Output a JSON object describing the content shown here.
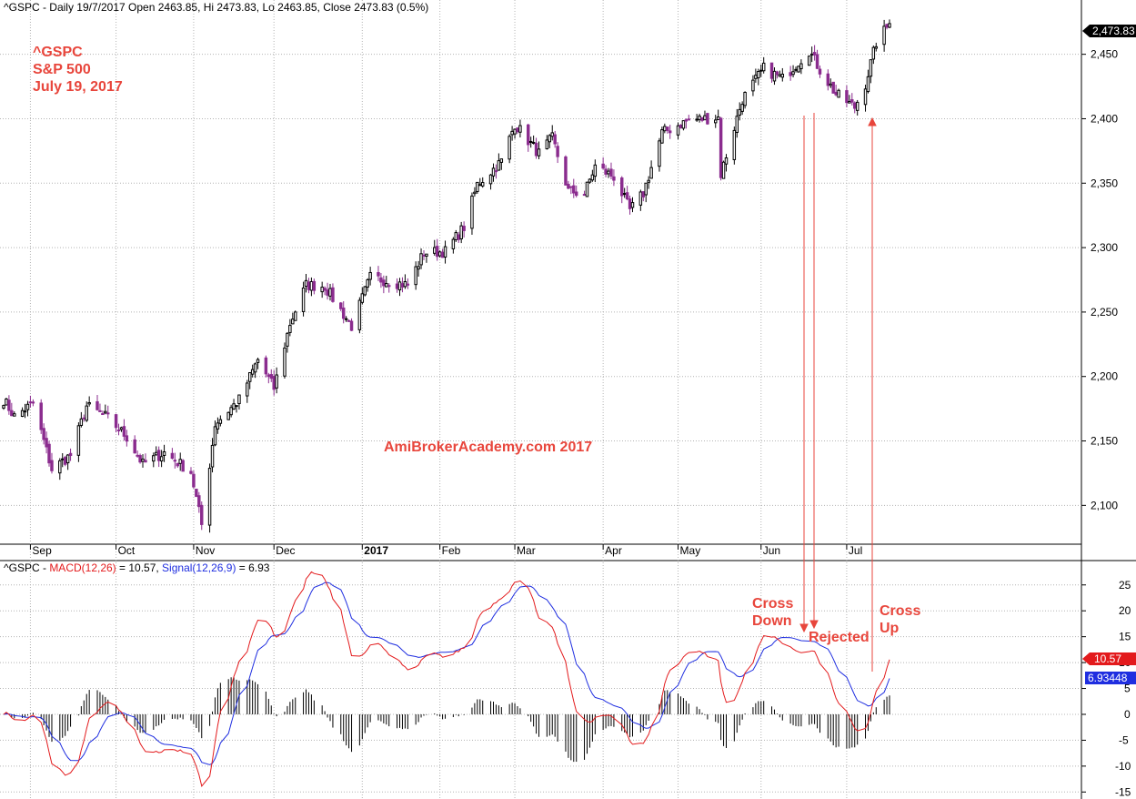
{
  "header": {
    "price_title": "^GSPC - Daily 19/7/2017 Open 2463.85, Hi 2473.83, Lo 2463.85, Close 2473.83 (0.5%)",
    "macd_prefix": "^GSPC - ",
    "macd_label": "MACD(12,26)",
    "macd_value": " = 10.57, ",
    "signal_label": "Signal(12,26,9)",
    "signal_value": " = 6.93"
  },
  "annotations": {
    "symbol": "^GSPC",
    "index_name": "S&P 500",
    "date": "July 19, 2017",
    "watermark": "AmiBrokerAcademy.com 2017",
    "cross_down_1": "Cross",
    "cross_down_2": "Down",
    "rejected": "Rejected",
    "cross_up_1": "Cross",
    "cross_up_2": "Up"
  },
  "badges": {
    "last_close": "2,473.83",
    "macd_last": "10.57",
    "signal_last": "6.93448"
  },
  "colors": {
    "bull": "#000000",
    "bear": "#8b2c8f",
    "macd": "#e31a1c",
    "signal": "#1f2ee0",
    "annotation": "#e8463c",
    "badge_close": "#000000",
    "badge_macd": "#e31a1c",
    "badge_signal": "#1f2ee0"
  },
  "chart_data": [
    {
      "type": "candlestick",
      "x_axis": "date",
      "x_start": "2016-08-22",
      "x_end": "2017-07-19",
      "month_labels": [
        {
          "label": "Sep",
          "date": "2016-09-01"
        },
        {
          "label": "Oct",
          "date": "2016-10-03"
        },
        {
          "label": "Nov",
          "date": "2016-11-01"
        },
        {
          "label": "Dec",
          "date": "2016-12-01"
        },
        {
          "label": "2017",
          "date": "2017-01-03"
        },
        {
          "label": "Feb",
          "date": "2017-02-01"
        },
        {
          "label": "Mar",
          "date": "2017-03-01"
        },
        {
          "label": "Apr",
          "date": "2017-04-03"
        },
        {
          "label": "May",
          "date": "2017-05-01"
        },
        {
          "label": "Jun",
          "date": "2017-06-01"
        },
        {
          "label": "Jul",
          "date": "2017-07-03"
        }
      ],
      "ylim": [
        2072,
        2478
      ],
      "yticks": [
        {
          "v": 2100,
          "label": "2,100"
        },
        {
          "v": 2150,
          "label": "2,150"
        },
        {
          "v": 2200,
          "label": "2,200"
        },
        {
          "v": 2250,
          "label": "2,250"
        },
        {
          "v": 2300,
          "label": "2,300"
        },
        {
          "v": 2350,
          "label": "2,350"
        },
        {
          "v": 2400,
          "label": "2,400"
        },
        {
          "v": 2450,
          "label": "2,450"
        }
      ],
      "close_anchors": [
        [
          "2016-08-22",
          2182
        ],
        [
          "2016-08-26",
          2169
        ],
        [
          "2016-09-02",
          2179
        ],
        [
          "2016-09-09",
          2128
        ],
        [
          "2016-09-16",
          2139
        ],
        [
          "2016-09-22",
          2177
        ],
        [
          "2016-09-30",
          2168
        ],
        [
          "2016-10-07",
          2153
        ],
        [
          "2016-10-13",
          2132
        ],
        [
          "2016-10-21",
          2141
        ],
        [
          "2016-10-31",
          2126
        ],
        [
          "2016-11-04",
          2085
        ],
        [
          "2016-11-09",
          2163
        ],
        [
          "2016-11-18",
          2182
        ],
        [
          "2016-11-25",
          2213
        ],
        [
          "2016-12-01",
          2191
        ],
        [
          "2016-12-07",
          2241
        ],
        [
          "2016-12-13",
          2271
        ],
        [
          "2016-12-20",
          2270
        ],
        [
          "2016-12-30",
          2239
        ],
        [
          "2017-01-06",
          2277
        ],
        [
          "2017-01-13",
          2274
        ],
        [
          "2017-01-20",
          2271
        ],
        [
          "2017-01-26",
          2296
        ],
        [
          "2017-02-03",
          2297
        ],
        [
          "2017-02-10",
          2316
        ],
        [
          "2017-02-15",
          2349
        ],
        [
          "2017-02-24",
          2367
        ],
        [
          "2017-03-01",
          2396
        ],
        [
          "2017-03-10",
          2373
        ],
        [
          "2017-03-15",
          2385
        ],
        [
          "2017-03-21",
          2344
        ],
        [
          "2017-03-27",
          2342
        ],
        [
          "2017-03-31",
          2363
        ],
        [
          "2017-04-07",
          2355
        ],
        [
          "2017-04-13",
          2329
        ],
        [
          "2017-04-18",
          2342
        ],
        [
          "2017-04-25",
          2389
        ],
        [
          "2017-05-05",
          2399
        ],
        [
          "2017-05-16",
          2401
        ],
        [
          "2017-05-17",
          2357
        ],
        [
          "2017-05-25",
          2415
        ],
        [
          "2017-06-02",
          2439
        ],
        [
          "2017-06-09",
          2431
        ],
        [
          "2017-06-19",
          2453
        ],
        [
          "2017-06-23",
          2438
        ],
        [
          "2017-06-29",
          2419
        ],
        [
          "2017-07-06",
          2409
        ],
        [
          "2017-07-10",
          2427
        ],
        [
          "2017-07-14",
          2459
        ],
        [
          "2017-07-19",
          2473.83
        ]
      ],
      "last_close": 2473.83
    },
    {
      "type": "line",
      "title": "MACD(12,26) / Signal(12,26,9)",
      "ylim": [
        -16,
        29
      ],
      "yticks": [
        -15,
        -10,
        -5,
        0,
        5,
        10,
        15,
        20,
        25
      ],
      "series": [
        {
          "name": "MACD(12,26)",
          "last": 10.57
        },
        {
          "name": "Signal(12,26,9)",
          "last": 6.93448
        }
      ]
    }
  ]
}
